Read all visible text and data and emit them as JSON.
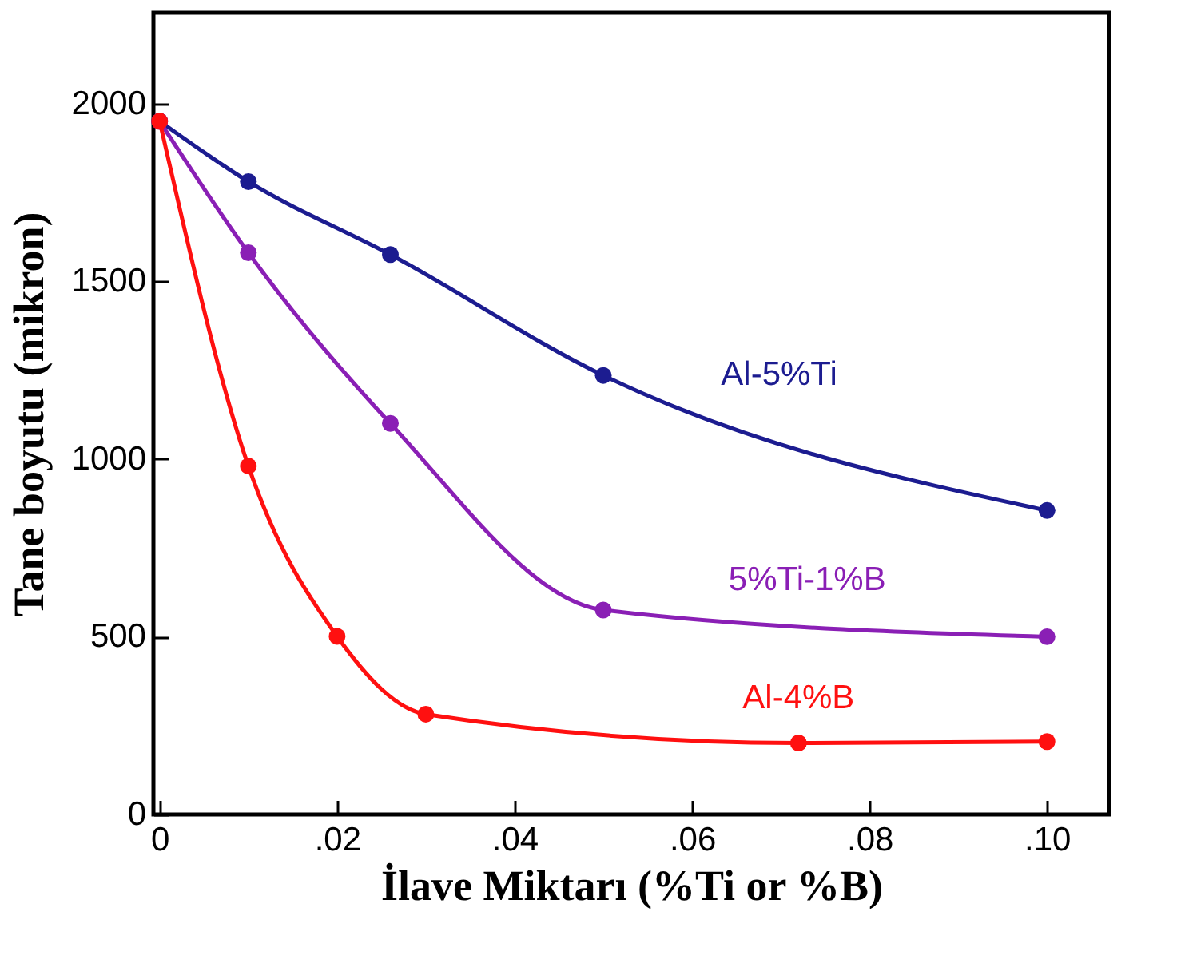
{
  "chart_data": {
    "type": "line",
    "xlabel": "İlave Miktarı (%Ti or %B)",
    "ylabel": "Tane boyutu (mikron)",
    "marker": "circle",
    "line_style": "solid",
    "legend": false,
    "xlim": [
      -0.0007,
      0.107
    ],
    "xticks": [
      0,
      {
        "value": 0.02,
        "label": ".02"
      },
      {
        "value": 0.04,
        "label": ".04"
      },
      {
        "value": 0.06,
        "label": ".06"
      },
      {
        "value": 0.08,
        "label": ".08"
      },
      {
        "value": 0.1,
        "label": ".10"
      }
    ],
    "ylim": [
      0,
      2255
    ],
    "yticks": [
      0,
      500,
      1000,
      1500,
      2000
    ],
    "series": [
      {
        "name": "Al-5%Ti",
        "color": "#1c1c90",
        "x": [
          0,
          0.01,
          0.026,
          0.05,
          0.1
        ],
        "values": [
          1950,
          1780,
          1575,
          1235,
          855
        ]
      },
      {
        "name": "5%Ti-1%B",
        "color": "#8a1fb5",
        "x": [
          0,
          0.01,
          0.026,
          0.05,
          0.1
        ],
        "values": [
          1950,
          1580,
          1100,
          575,
          500
        ]
      },
      {
        "name": "Al-4%B",
        "color": "#ff1010",
        "x": [
          0,
          0.01,
          0.02,
          0.03,
          0.072,
          0.1
        ],
        "values": [
          1950,
          980,
          501,
          282,
          201,
          205
        ]
      }
    ]
  }
}
